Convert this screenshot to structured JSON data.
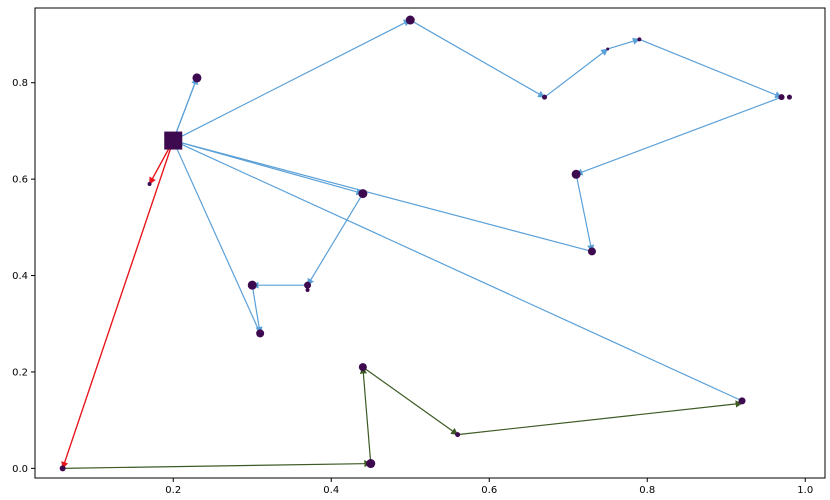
{
  "chart_data": {
    "type": "scatter",
    "title": "",
    "xlabel": "",
    "ylabel": "",
    "xlim": [
      0.025,
      1.025
    ],
    "ylim": [
      -0.02,
      0.955
    ],
    "xticks": [
      0.2,
      0.4,
      0.6,
      0.8,
      1.0
    ],
    "xtick_labels": [
      "0.2",
      "0.4",
      "0.6",
      "0.8",
      "1.0"
    ],
    "yticks": [
      0.0,
      0.2,
      0.4,
      0.6,
      0.8
    ],
    "ytick_labels": [
      "0.0",
      "0.2",
      "0.4",
      "0.6",
      "0.8"
    ],
    "grid": false,
    "point_color": "#3d0a4f",
    "depot": {
      "x": 0.2,
      "y": 0.68,
      "color": "#3d0a4f",
      "marker": "square"
    },
    "points": [
      {
        "x": 0.23,
        "y": 0.81,
        "size": 9
      },
      {
        "x": 0.17,
        "y": 0.59,
        "size": 4
      },
      {
        "x": 0.5,
        "y": 0.93,
        "size": 9
      },
      {
        "x": 0.67,
        "y": 0.77,
        "size": 5
      },
      {
        "x": 0.75,
        "y": 0.87,
        "size": 3
      },
      {
        "x": 0.79,
        "y": 0.89,
        "size": 4
      },
      {
        "x": 0.97,
        "y": 0.77,
        "size": 6
      },
      {
        "x": 0.98,
        "y": 0.77,
        "size": 5
      },
      {
        "x": 0.71,
        "y": 0.61,
        "size": 9
      },
      {
        "x": 0.73,
        "y": 0.45,
        "size": 8
      },
      {
        "x": 0.44,
        "y": 0.57,
        "size": 9
      },
      {
        "x": 0.37,
        "y": 0.38,
        "size": 7
      },
      {
        "x": 0.37,
        "y": 0.37,
        "size": 4
      },
      {
        "x": 0.3,
        "y": 0.38,
        "size": 9
      },
      {
        "x": 0.31,
        "y": 0.28,
        "size": 8
      },
      {
        "x": 0.06,
        "y": 0.0,
        "size": 6
      },
      {
        "x": 0.45,
        "y": 0.01,
        "size": 9
      },
      {
        "x": 0.44,
        "y": 0.21,
        "size": 8
      },
      {
        "x": 0.56,
        "y": 0.07,
        "size": 5
      },
      {
        "x": 0.92,
        "y": 0.14,
        "size": 7
      }
    ],
    "routes": [
      {
        "color": "#e8151b",
        "path": [
          [
            0.2,
            0.68
          ],
          [
            0.06,
            0.0
          ],
          [
            0.2,
            0.68
          ],
          [
            0.17,
            0.59
          ],
          [
            0.2,
            0.68
          ]
        ]
      },
      {
        "color": "#3d5a24",
        "path": [
          [
            0.06,
            0.0
          ],
          [
            0.45,
            0.01
          ],
          [
            0.44,
            0.21
          ],
          [
            0.56,
            0.07
          ],
          [
            0.92,
            0.135
          ]
        ]
      },
      {
        "color": "#5aa0d8",
        "path": [
          [
            0.92,
            0.14
          ],
          [
            0.2,
            0.68
          ],
          [
            0.23,
            0.81
          ],
          [
            0.2,
            0.68
          ],
          [
            0.5,
            0.93
          ],
          [
            0.67,
            0.77
          ],
          [
            0.75,
            0.87
          ],
          [
            0.79,
            0.89
          ],
          [
            0.97,
            0.77
          ],
          [
            0.71,
            0.61
          ],
          [
            0.73,
            0.45
          ],
          [
            0.2,
            0.68
          ],
          [
            0.44,
            0.57
          ],
          [
            0.37,
            0.38
          ],
          [
            0.3,
            0.38
          ],
          [
            0.31,
            0.28
          ],
          [
            0.2,
            0.68
          ]
        ]
      }
    ]
  }
}
